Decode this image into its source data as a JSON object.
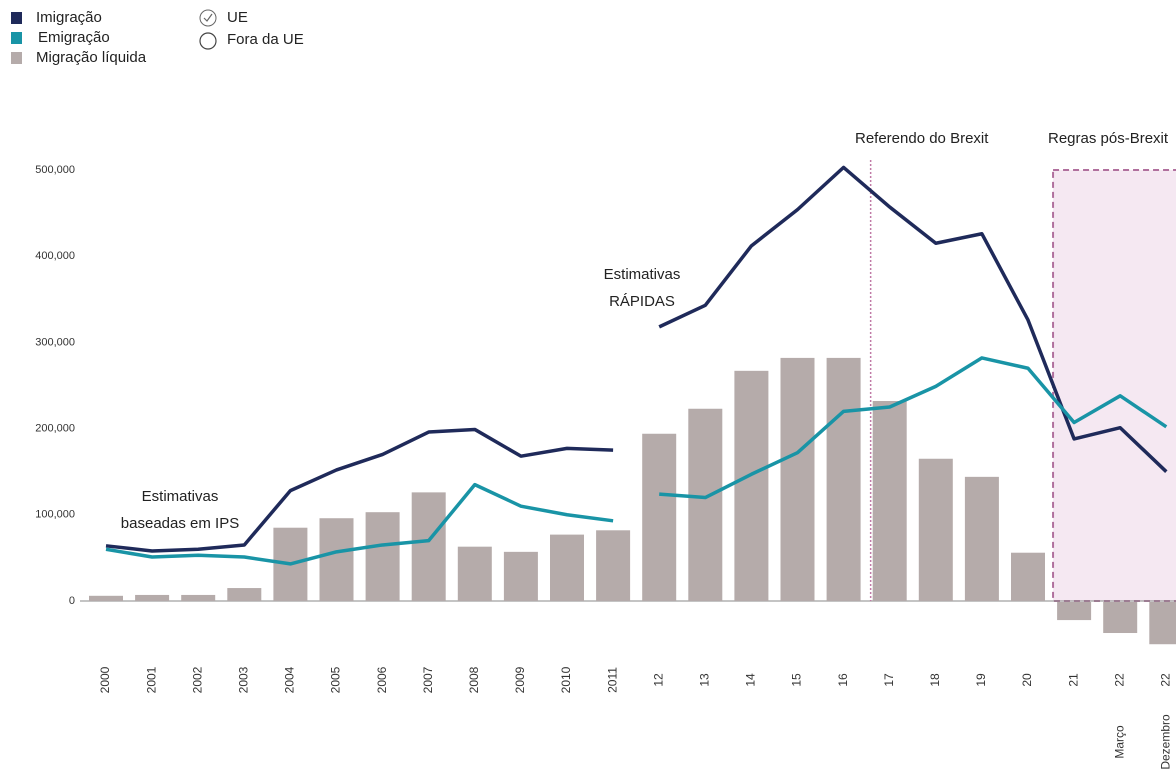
{
  "chart_data": {
    "type": "bar_line",
    "categories": [
      "2000",
      "2001",
      "2002",
      "2003",
      "2004",
      "2005",
      "2006",
      "2007",
      "2008",
      "2009",
      "2010",
      "2011",
      "12",
      "13",
      "14",
      "15",
      "16",
      "17",
      "18",
      "19",
      "20",
      "21",
      "22",
      "22"
    ],
    "sub_labels": [
      null,
      null,
      null,
      null,
      null,
      null,
      null,
      null,
      null,
      null,
      null,
      null,
      null,
      null,
      null,
      null,
      null,
      null,
      null,
      null,
      null,
      null,
      "Março",
      "Dezembro"
    ],
    "bars": {
      "name": "Migração líquida",
      "color": "#b5abaa",
      "values": [
        6000,
        7000,
        7000,
        15000,
        85000,
        96000,
        103000,
        126000,
        63000,
        57000,
        77000,
        82000,
        194000,
        223000,
        267000,
        282000,
        282000,
        232000,
        165000,
        144000,
        56000,
        -21000,
        -36000,
        -49000
      ]
    },
    "series": [
      {
        "name": "Imigração",
        "color": "#1f2a5a",
        "values": [
          64000,
          58000,
          60000,
          65000,
          128000,
          152000,
          170000,
          196000,
          199000,
          168000,
          177000,
          175000,
          318000,
          343000,
          412000,
          454000,
          503000,
          457000,
          415000,
          426000,
          326000,
          188000,
          201000,
          150000
        ]
      },
      {
        "name": "Emigração",
        "color": "#1994a6",
        "values": [
          60000,
          51000,
          53000,
          51000,
          43000,
          57000,
          65000,
          70000,
          135000,
          110000,
          100000,
          93000,
          124000,
          120000,
          147000,
          172000,
          220000,
          225000,
          249000,
          282000,
          270000,
          207000,
          238000,
          202000
        ]
      }
    ],
    "line_break_before": "12",
    "legend_extra": [
      "UE",
      "Fora da UE"
    ],
    "annotations": [
      {
        "lines": [
          "Estimativas",
          "baseadas em IPS"
        ]
      },
      {
        "lines": [
          "Estimativas",
          "RÁPIDAS"
        ]
      }
    ],
    "brexit_line": {
      "text": "Referendo do Brexit",
      "after": "16"
    },
    "post_brexit": {
      "text": "Regras pós-Brexit",
      "from": "21"
    },
    "ylim": [
      -60000,
      540000
    ],
    "yticks": [
      0,
      {
        "value": 100000,
        "label": "100,000"
      },
      {
        "value": 200000,
        "label": "200,000"
      },
      {
        "value": 300000,
        "label": "300,000"
      },
      {
        "value": 400000,
        "label": "400,000"
      },
      {
        "value": 500000,
        "label": "500,000"
      }
    ]
  }
}
